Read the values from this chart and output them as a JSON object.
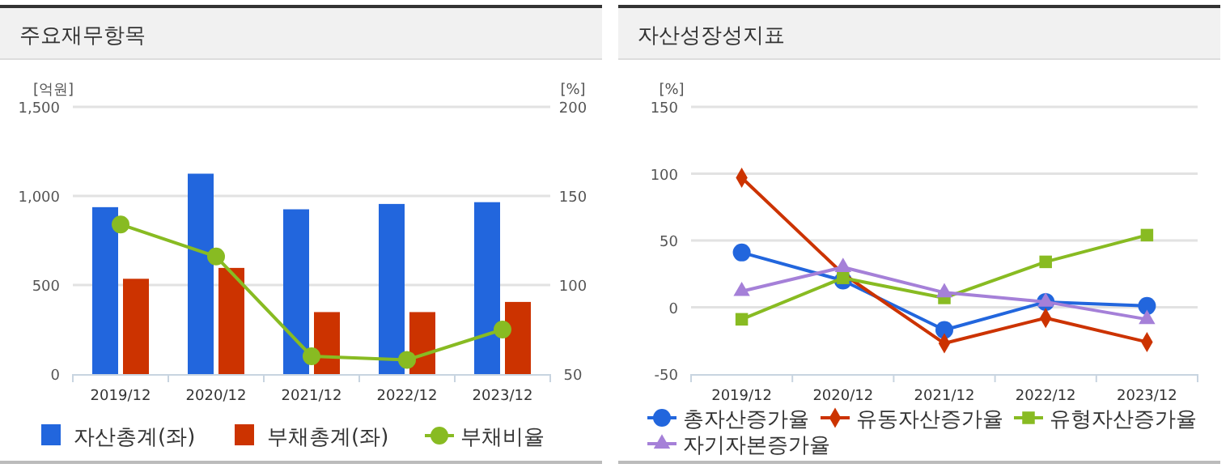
{
  "chart_data": [
    {
      "type": "bar",
      "title": "주요재무항목",
      "categories": [
        "2019/12",
        "2020/12",
        "2021/12",
        "2022/12",
        "2023/12"
      ],
      "ylabel": "[억원]",
      "y2label": "[%]",
      "ylim": [
        0,
        1500
      ],
      "yticks": [
        0,
        {
          "value": 500,
          "label": "500"
        },
        {
          "value": 1000,
          "label": "1,000"
        },
        {
          "value": 1500,
          "label": "1,500"
        }
      ],
      "y2lim": [
        50,
        200
      ],
      "y2ticks": [
        50,
        100,
        150,
        200
      ],
      "grid": "y",
      "legend": "bottom",
      "series": [
        {
          "name": "자산총계(좌)",
          "color": "#2266dd",
          "values": [
            937,
            1125,
            925,
            955,
            965
          ]
        },
        {
          "name": "부채총계(좌)",
          "color": "#cc3300",
          "values": [
            535,
            596,
            348,
            348,
            405
          ]
        },
        {
          "name": "부채비율",
          "type": "line",
          "axis": "y2",
          "marker": "circle",
          "color": "#88bb22",
          "values": [
            134,
            116,
            60,
            58,
            75
          ]
        }
      ]
    },
    {
      "type": "line",
      "title": "자산성장성지표",
      "categories": [
        "2019/12",
        "2020/12",
        "2021/12",
        "2022/12",
        "2023/12"
      ],
      "ylabel": "[%]",
      "ylim": [
        -50,
        150
      ],
      "yticks": [
        -50,
        0,
        50,
        100,
        150
      ],
      "grid": "y",
      "legend": "bottom",
      "series": [
        {
          "name": "총자산증가율",
          "marker": "circle",
          "color": "#2266dd",
          "values": [
            41,
            20,
            -17,
            4,
            1
          ]
        },
        {
          "name": "유동자산증가율",
          "marker": "diamond",
          "color": "#cc3300",
          "values": [
            97,
            25,
            -27,
            -8,
            -26
          ]
        },
        {
          "name": "유형자산증가율",
          "marker": "square",
          "color": "#88bb22",
          "values": [
            -9,
            22,
            7,
            34,
            54
          ]
        },
        {
          "name": "자기자본증가율",
          "marker": "triangle",
          "color": "#a580d8",
          "values": [
            12,
            30,
            11,
            4,
            -9
          ]
        }
      ]
    }
  ]
}
